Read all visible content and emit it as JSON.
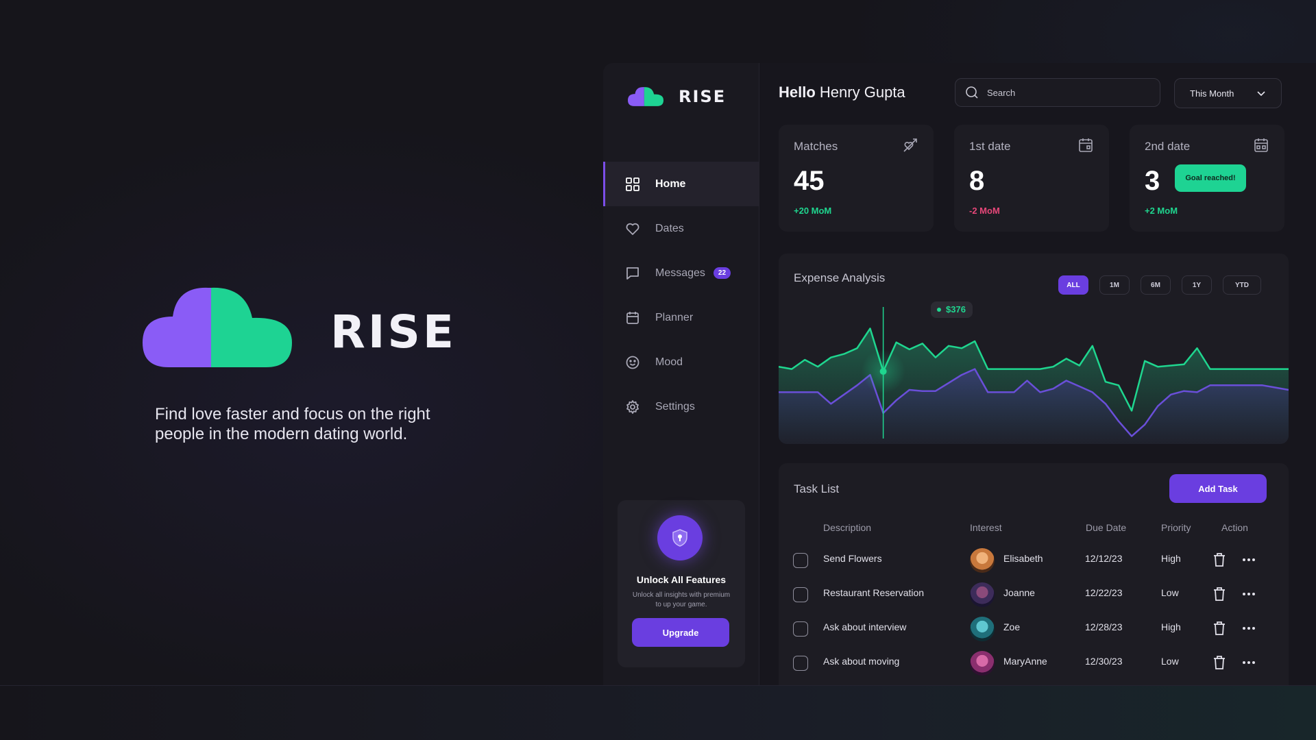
{
  "hero": {
    "brand": "RISE",
    "tagline": "Find love faster and focus on the right people in the modern dating world."
  },
  "sidebar": {
    "brand": "RISE",
    "items": [
      {
        "label": "Home",
        "icon": "grid-icon",
        "active": true
      },
      {
        "label": "Dates",
        "icon": "heart-icon"
      },
      {
        "label": "Messages",
        "icon": "message-icon",
        "badge": "22"
      },
      {
        "label": "Planner",
        "icon": "calendar-icon"
      },
      {
        "label": "Mood",
        "icon": "smiley-icon"
      },
      {
        "label": "Settings",
        "icon": "gear-icon"
      }
    ],
    "upgrade": {
      "title": "Unlock All Features",
      "text": "Unlock all insights with premium to up your game.",
      "button": "Upgrade"
    }
  },
  "header": {
    "greeting_bold": "Hello",
    "greeting_name": "Henry Gupta",
    "search_placeholder": "Search",
    "period": "This Month"
  },
  "stats": [
    {
      "label": "Matches",
      "value": "45",
      "delta": "+20 MoM",
      "trend": "up",
      "icon": "arrow-heart-icon"
    },
    {
      "label": "1st date",
      "value": "8",
      "delta": "-2 MoM",
      "trend": "down",
      "icon": "calendar-icon"
    },
    {
      "label": "2nd date",
      "value": "3",
      "delta": "+2 MoM",
      "trend": "up",
      "icon": "calendar-icon",
      "badge": "Goal reached!"
    }
  ],
  "chart": {
    "title": "Expense Analysis",
    "ranges": [
      "ALL",
      "1M",
      "6M",
      "1Y",
      "YTD"
    ],
    "active_range": "ALL",
    "tooltip": "$376"
  },
  "chart_data": {
    "type": "area",
    "title": "Expense Analysis",
    "xlabel": "",
    "ylabel": "",
    "grid": false,
    "highlight_index": 8,
    "highlight_value": "$376",
    "series": [
      {
        "color": "#1fd68f",
        "values": [
          62,
          60,
          68,
          62,
          70,
          73,
          78,
          95,
          58,
          83,
          77,
          82,
          70,
          80,
          78,
          84,
          60,
          60,
          60,
          60,
          60,
          62,
          69,
          63,
          80,
          49,
          46,
          24,
          67,
          62,
          63,
          64,
          78,
          60,
          60,
          60,
          60,
          60,
          60,
          60
        ]
      },
      {
        "color": "#6a4fd9",
        "values": [
          40,
          40,
          40,
          40,
          30,
          38,
          46,
          55,
          22,
          33,
          42,
          41,
          41,
          48,
          55,
          60,
          40,
          40,
          40,
          50,
          40,
          43,
          50,
          45,
          40,
          30,
          15,
          2,
          12,
          28,
          38,
          41,
          40,
          46,
          46,
          46,
          46,
          46,
          44,
          42
        ]
      }
    ]
  },
  "tasks": {
    "title": "Task List",
    "add_button": "Add Task",
    "columns": [
      "Description",
      "Interest",
      "Due Date",
      "Priority",
      "Action"
    ],
    "rows": [
      {
        "description": "Send Flowers",
        "interest": "Elisabeth",
        "due": "12/12/23",
        "priority": "High",
        "avatar_color": "#c8783c"
      },
      {
        "description": "Restaurant Reservation",
        "interest": "Joanne",
        "due": "12/22/23",
        "priority": "Low",
        "avatar_color": "#3d2c5a"
      },
      {
        "description": "Ask about interview",
        "interest": "Zoe",
        "due": "12/28/23",
        "priority": "High",
        "avatar_color": "#1f6f7a"
      },
      {
        "description": "Ask about moving",
        "interest": "MaryAnne",
        "due": "12/30/23",
        "priority": "Low",
        "avatar_color": "#8a2f6e"
      }
    ]
  },
  "colors": {
    "accent_purple": "#6a3ee0",
    "accent_green": "#1fd68f",
    "negative": "#e64779"
  }
}
